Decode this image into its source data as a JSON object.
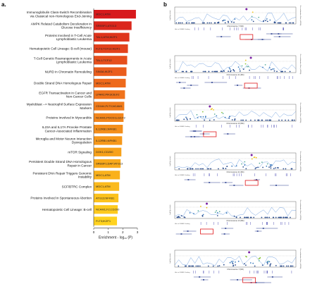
{
  "panel_a": {
    "letter": "a."
  },
  "panel_b": {
    "letter": "b"
  },
  "chart_data": {
    "type": "bar",
    "orientation": "horizontal",
    "xlabel": "Enrichment - log₁₀ (P)",
    "xlim": [
      0,
      3
    ],
    "xticks": [
      "0",
      "1",
      "2",
      "3"
    ],
    "color_scale": [
      "#d7191c",
      "#ee6a1c",
      "#f7a11a",
      "#ffd21f"
    ],
    "bars": [
      {
        "term": "Immunoglobulin Class-Switch Recombination via Classical non-Homologous End-Joining",
        "genes": "MDC1;ATM",
        "value": 2.9
      },
      {
        "term": "AMPK Related Catabolism Deceleration in Glucose Insufficiency",
        "genes": "SREBF1;ATG13",
        "value": 2.6
      },
      {
        "term": "Proteins Involved in T-Cell Acute Lymphoblastic Leukemia",
        "genes": "TAL1;ATM;IKZF1",
        "value": 2.45
      },
      {
        "term": "Hematopoietic Cell Lineage: B-cell (mouse)",
        "genes": "FLT3;TCF12;IKZF1",
        "value": 2.35
      },
      {
        "term": "T-Cell Genetic Rearrangements in Acute Lymphoblastic Leukemia",
        "genes": "TAL1;TCF12",
        "value": 2.3
      },
      {
        "term": "NURD in Chromatin Remodeling",
        "genes": "SIN3A;IKZF1",
        "value": 2.25
      },
      {
        "term": "Double Strand DNA Homologous Repair",
        "genes": "MDC1;ATM",
        "value": 2.2
      },
      {
        "term": "EGFR Transactivation in Cancer and Non-Cancer Cells",
        "genes": "LPAR2;PIK3CB;F2",
        "value": 2.15
      },
      {
        "term": "Myeloblast --> Neutrophil Surface Expression Markers",
        "genes": "CD164;FLT3;NCAM1",
        "value": 2.1
      },
      {
        "term": "Proteins Involved in Myocarditis",
        "genes": "NCAM1;PDCD1LG2;F2",
        "value": 2.05
      },
      {
        "term": "IL23A and IL17A Provoke Prostate Cancer-Associated Inflammation",
        "genes": "IL12RB1;NFKB1",
        "value": 2.0
      },
      {
        "term": "Microglia and Motor Neuron Interaction Dysregulation",
        "genes": "IL12RB1;NFKB1",
        "value": 1.95
      },
      {
        "term": "mTOR Signaling",
        "genes": "DOK1;CD200",
        "value": 1.9
      },
      {
        "term": "Persistent Double Strand DNA Homologous Repair in Cancer",
        "genes": "SREBF1;DAP;ATG13",
        "value": 1.85
      },
      {
        "term": "Persistent DNA Repair Triggers Genomic Instability",
        "genes": "MDC1;ATM",
        "value": 1.8
      },
      {
        "term": "SCF/BTRC Complex",
        "genes": "MDC1;ATM",
        "value": 1.75
      },
      {
        "term": "Proteins Involved in Spontaneous Abortion",
        "genes": "ATG13;NFKB1",
        "value": 1.7
      },
      {
        "term": "Hematopoietic Cell Lineage: B-cell",
        "genes": "NCAM1;F2;CD200",
        "value": 1.65
      },
      {
        "term": "",
        "genes": "FLT3;IKZF1",
        "value": 1.6
      }
    ],
    "locus_plots": {
      "chromosomes": [
        "Chromosome 7 (Mb)",
        "Chromosome 11 (Mb)",
        "Chromosome 10 (Mb)",
        "Chromosome 11 (Mb)",
        "Chromosome 13 (Mb)",
        "Chromosome 7 (Mb)"
      ],
      "ylabel_left": "-log10(p-value)",
      "ylabel_right": "Recombination Rate (cM/Mb)",
      "gwas_label": "Hits in GWAS Catalog"
    }
  }
}
